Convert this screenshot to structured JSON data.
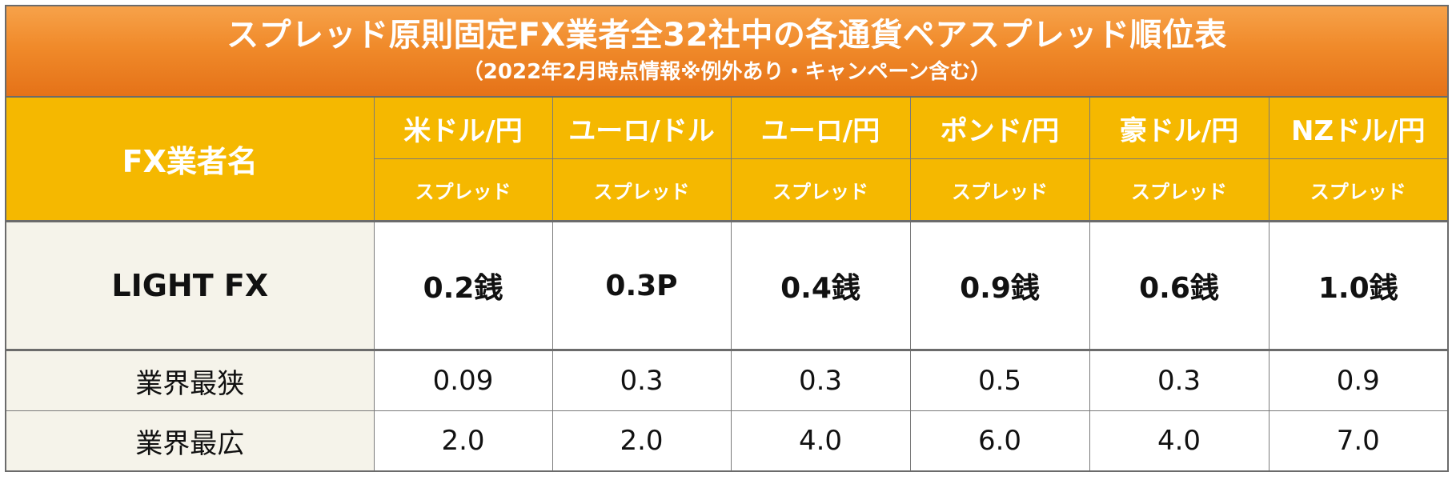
{
  "title": {
    "main": "スプレッド原則固定FX業者全32社中の各通貨ペアスプレッド順位表",
    "sub": "（2022年2月時点情報※例外あり・キャンペーン含む）"
  },
  "header": {
    "broker_label": "FX業者名",
    "spread_label": "スプレッド"
  },
  "chart_data": {
    "type": "table",
    "columns": [
      "米ドル/円",
      "ユーロ/ドル",
      "ユーロ/円",
      "ポンド/円",
      "豪ドル/円",
      "NZドル/円"
    ],
    "rows": [
      {
        "label": "LIGHT FX",
        "values": [
          "0.2銭",
          "0.3P",
          "0.4銭",
          "0.9銭",
          "0.6銭",
          "1.0銭"
        ]
      },
      {
        "label": "業界最狭",
        "values": [
          "0.09",
          "0.3",
          "0.3",
          "0.5",
          "0.3",
          "0.9"
        ]
      },
      {
        "label": "業界最広",
        "values": [
          "2.0",
          "2.0",
          "4.0",
          "6.0",
          "4.0",
          "7.0"
        ]
      }
    ]
  }
}
